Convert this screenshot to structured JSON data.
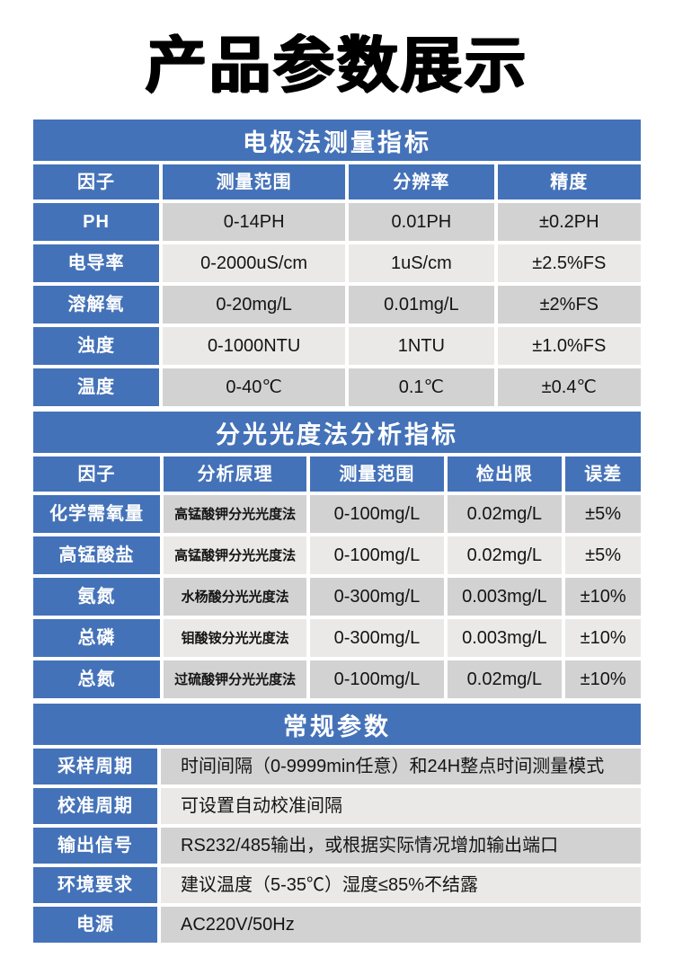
{
  "page_title": "产品参数展示",
  "colors": {
    "header_blue": "#4472b9",
    "row_dark": "#d2d2d2",
    "row_light": "#eae9e7",
    "page_bg": "#ffffff",
    "text": "#141414"
  },
  "sections": [
    {
      "title": "电极法测量指标",
      "columns": [
        "因子",
        "测量范围",
        "分辨率",
        "精度"
      ],
      "rows": [
        [
          "PH",
          "0-14PH",
          "0.01PH",
          "±0.2PH"
        ],
        [
          "电导率",
          "0-2000uS/cm",
          "1uS/cm",
          "±2.5%FS"
        ],
        [
          "溶解氧",
          "0-20mg/L",
          "0.01mg/L",
          "±2%FS"
        ],
        [
          "浊度",
          "0-1000NTU",
          "1NTU",
          "±1.0%FS"
        ],
        [
          "温度",
          "0-40℃",
          "0.1℃",
          "±0.4℃"
        ]
      ]
    },
    {
      "title": "分光光度法分析指标",
      "columns": [
        "因子",
        "分析原理",
        "测量范围",
        "检出限",
        "误差"
      ],
      "rows": [
        [
          "化学需氧量",
          "高锰酸钾分光光度法",
          "0-100mg/L",
          "0.02mg/L",
          "±5%"
        ],
        [
          "高锰酸盐",
          "高锰酸钾分光光度法",
          "0-100mg/L",
          "0.02mg/L",
          "±5%"
        ],
        [
          "氨氮",
          "水杨酸分光光度法",
          "0-300mg/L",
          "0.003mg/L",
          "±10%"
        ],
        [
          "总磷",
          "钼酸铵分光光度法",
          "0-300mg/L",
          "0.003mg/L",
          "±10%"
        ],
        [
          "总氮",
          "过硫酸钾分光光度法",
          "0-100mg/L",
          "0.02mg/L",
          "±10%"
        ]
      ]
    },
    {
      "title": "常规参数",
      "rows": [
        [
          "采样周期",
          "时间间隔（0-9999min任意）和24H整点时间测量模式"
        ],
        [
          "校准周期",
          "可设置自动校准间隔"
        ],
        [
          "输出信号",
          "RS232/485输出，或根据实际情况增加输出端口"
        ],
        [
          "环境要求",
          "建议温度（5-35℃）湿度≤85%不结露"
        ],
        [
          "电源",
          "AC220V/50Hz"
        ]
      ]
    }
  ]
}
